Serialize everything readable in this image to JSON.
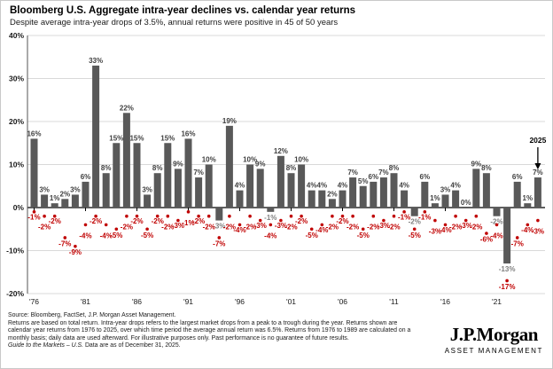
{
  "header": {
    "title": "Bloomberg U.S. Aggregate intra-year declines vs. calendar year returns",
    "subtitle": "Despite average intra-year drops of 3.5%, annual returns were positive in 45 of 50 years"
  },
  "chart_data": {
    "type": "bar",
    "title": "Bloomberg U.S. Aggregate intra-year declines vs. calendar year returns",
    "years": [
      1976,
      1977,
      1978,
      1979,
      1980,
      1981,
      1982,
      1983,
      1984,
      1985,
      1986,
      1987,
      1988,
      1989,
      1990,
      1991,
      1992,
      1993,
      1994,
      1995,
      1996,
      1997,
      1998,
      1999,
      2000,
      2001,
      2002,
      2003,
      2004,
      2005,
      2006,
      2007,
      2008,
      2009,
      2010,
      2011,
      2012,
      2013,
      2014,
      2015,
      2016,
      2017,
      2018,
      2019,
      2020,
      2021,
      2022,
      2023,
      2024,
      2025
    ],
    "series": [
      {
        "name": "Calendar year return (%)",
        "values": [
          16,
          3,
          1,
          2,
          3,
          6,
          33,
          8,
          15,
          22,
          15,
          3,
          8,
          15,
          9,
          16,
          7,
          10,
          -3,
          19,
          4,
          10,
          9,
          -1,
          12,
          8,
          10,
          4,
          4,
          2,
          4,
          7,
          5,
          6,
          7,
          8,
          4,
          -2,
          6,
          1,
          3,
          4,
          0,
          9,
          8,
          -2,
          -13,
          6,
          1,
          7
        ]
      },
      {
        "name": "Intra-year decline (%)",
        "values": [
          -1,
          -2,
          -2,
          -7,
          -9,
          -4,
          -2,
          -4,
          -5,
          -2,
          -2,
          -5,
          -2,
          -2,
          -3,
          -1,
          -2,
          -2,
          -7,
          -2,
          -4,
          -2,
          -3,
          -4,
          -3,
          -2,
          -2,
          -5,
          -4,
          -2,
          -2,
          -2,
          -5,
          -2,
          -3,
          -2,
          -1,
          -5,
          -1,
          -3,
          -4,
          -2,
          -3,
          -2,
          -6,
          -4,
          -17,
          -7,
          -4,
          -3
        ]
      }
    ],
    "x_tick_labels": [
      "'76",
      "'81",
      "'86",
      "'91",
      "'96",
      "'01",
      "'06",
      "'11",
      "'16",
      "'21"
    ],
    "x_tick_years": [
      1976,
      1981,
      1986,
      1991,
      1996,
      2001,
      2006,
      2011,
      2016,
      2021
    ],
    "y_ticks": [
      40,
      30,
      20,
      10,
      0,
      -10,
      -20
    ],
    "ylim": [
      -20,
      40
    ],
    "grid": true,
    "legend_position": "none",
    "annotation": {
      "label": "2025",
      "year": 2025,
      "arrow": "down"
    },
    "colors": {
      "bar": "#595959",
      "bar_label": "#404040",
      "negative_bar_label": "#7f7f7f",
      "dot": "#c00000",
      "dot_label": "#c00000",
      "gridline": "#d9d9d9",
      "zero_line": "#000000",
      "axis_text": "#1a1a1a"
    }
  },
  "footer": {
    "lines": [
      "Source: Bloomberg, FactSet, J.P. Morgan Asset Management.",
      "Returns are based on total return. Intra-year drops refers to the largest market drops from a peak to a trough during the year. Returns shown are",
      "calendar year returns from 1976 to 2025, over which time period the average annual return was 6.5%. Returns from 1976 to 1989 are calculated on a",
      "monthly basis; daily data are used afterward. For illustrative purposes only. Past performance is no guarantee of future results."
    ],
    "guide_italic": "Guide to the Markets – U.S.",
    "guide_rest": " Data are as of December 31, 2025."
  },
  "logo": {
    "name": "J.P.Morgan",
    "sub": "ASSET MANAGEMENT"
  }
}
